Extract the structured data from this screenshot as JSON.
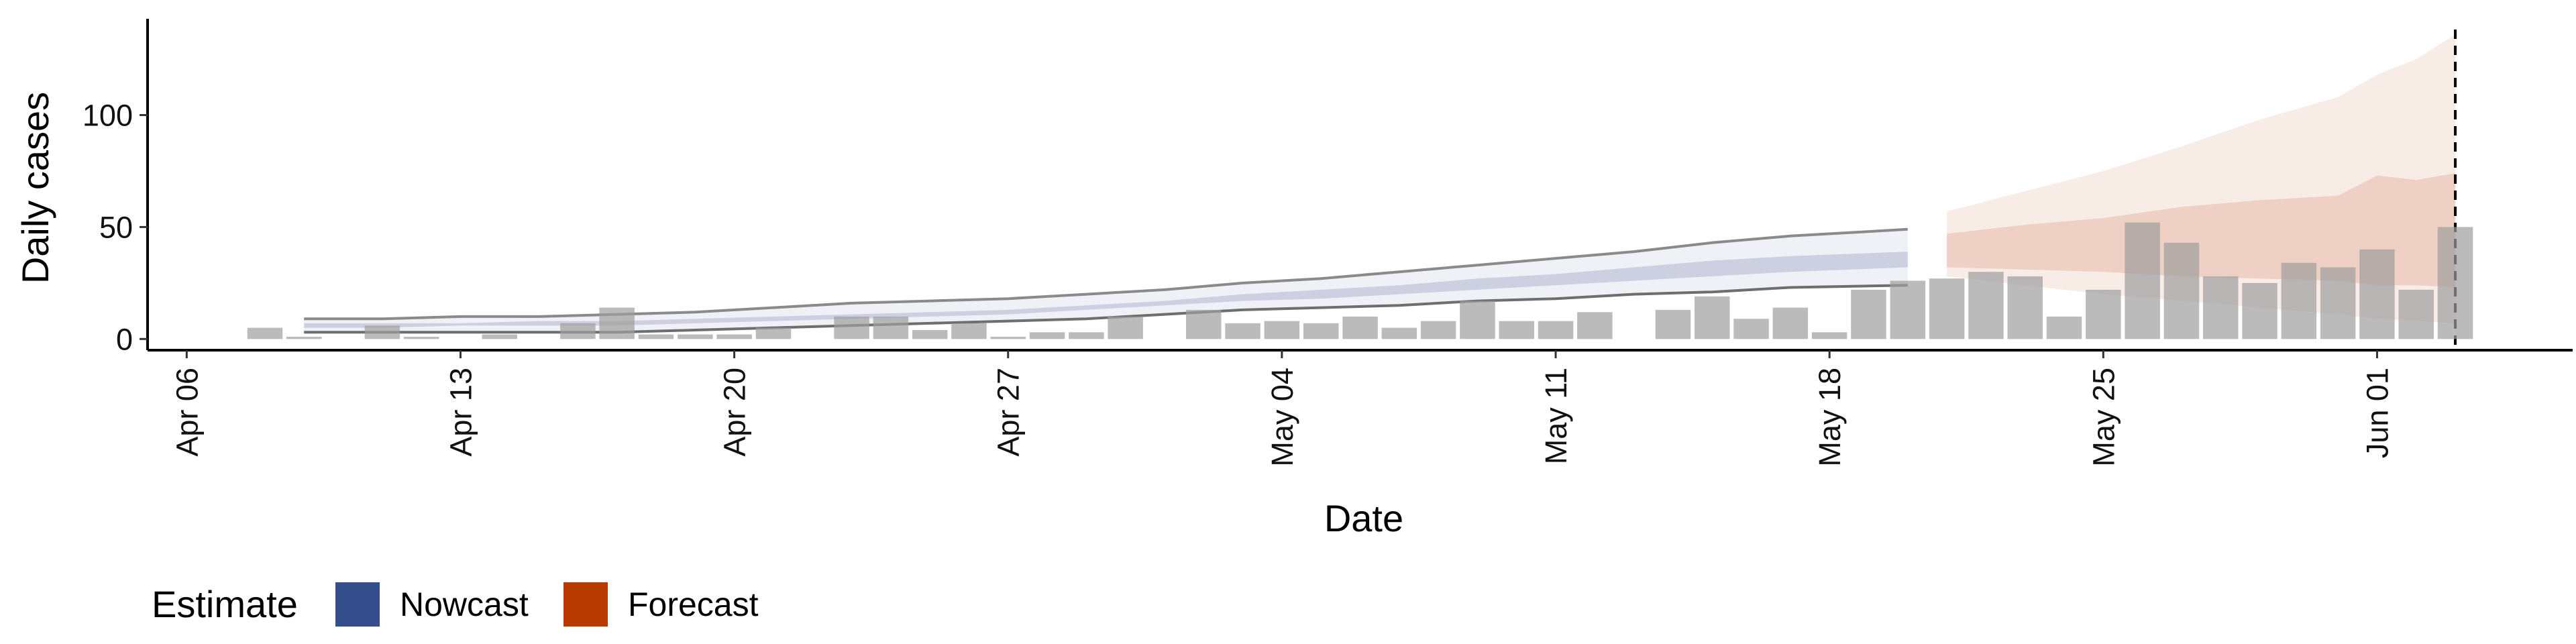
{
  "chart_data": {
    "type": "bar",
    "title": "",
    "xlabel": "Date",
    "ylabel": "Daily cases",
    "x_start": "2020-04-05",
    "x_end": "2020-06-06",
    "ylim": [
      -5,
      143
    ],
    "x_ticks": [
      "Apr 06",
      "Apr 13",
      "Apr 20",
      "Apr 27",
      "May 04",
      "May 11",
      "May 18",
      "May 25",
      "Jun 01"
    ],
    "y_ticks": [
      0,
      50,
      100
    ],
    "grid": false,
    "bar_color": "#9e9e9e",
    "cases": [
      {
        "date": "2020-04-08",
        "value": 5
      },
      {
        "date": "2020-04-09",
        "value": 1
      },
      {
        "date": "2020-04-10",
        "value": 0
      },
      {
        "date": "2020-04-11",
        "value": 6
      },
      {
        "date": "2020-04-12",
        "value": 1
      },
      {
        "date": "2020-04-13",
        "value": 0
      },
      {
        "date": "2020-04-14",
        "value": 2
      },
      {
        "date": "2020-04-15",
        "value": 0
      },
      {
        "date": "2020-04-16",
        "value": 7
      },
      {
        "date": "2020-04-17",
        "value": 14
      },
      {
        "date": "2020-04-18",
        "value": 2
      },
      {
        "date": "2020-04-19",
        "value": 2
      },
      {
        "date": "2020-04-20",
        "value": 2
      },
      {
        "date": "2020-04-21",
        "value": 5
      },
      {
        "date": "2020-04-22",
        "value": 0
      },
      {
        "date": "2020-04-23",
        "value": 10
      },
      {
        "date": "2020-04-24",
        "value": 10
      },
      {
        "date": "2020-04-25",
        "value": 4
      },
      {
        "date": "2020-04-26",
        "value": 7
      },
      {
        "date": "2020-04-27",
        "value": 1
      },
      {
        "date": "2020-04-28",
        "value": 3
      },
      {
        "date": "2020-04-29",
        "value": 3
      },
      {
        "date": "2020-04-30",
        "value": 10
      },
      {
        "date": "2020-05-01",
        "value": 0
      },
      {
        "date": "2020-05-02",
        "value": 13
      },
      {
        "date": "2020-05-03",
        "value": 7
      },
      {
        "date": "2020-05-04",
        "value": 8
      },
      {
        "date": "2020-05-05",
        "value": 7
      },
      {
        "date": "2020-05-06",
        "value": 10
      },
      {
        "date": "2020-05-07",
        "value": 5
      },
      {
        "date": "2020-05-08",
        "value": 8
      },
      {
        "date": "2020-05-09",
        "value": 17
      },
      {
        "date": "2020-05-10",
        "value": 8
      },
      {
        "date": "2020-05-11",
        "value": 8
      },
      {
        "date": "2020-05-12",
        "value": 12
      },
      {
        "date": "2020-05-13",
        "value": 0
      },
      {
        "date": "2020-05-14",
        "value": 13
      },
      {
        "date": "2020-05-15",
        "value": 19
      },
      {
        "date": "2020-05-16",
        "value": 9
      },
      {
        "date": "2020-05-17",
        "value": 14
      },
      {
        "date": "2020-05-18",
        "value": 3
      },
      {
        "date": "2020-05-19",
        "value": 22
      },
      {
        "date": "2020-05-20",
        "value": 26
      },
      {
        "date": "2020-05-21",
        "value": 27
      },
      {
        "date": "2020-05-22",
        "value": 30
      },
      {
        "date": "2020-05-23",
        "value": 28
      },
      {
        "date": "2020-05-24",
        "value": 10
      },
      {
        "date": "2020-05-25",
        "value": 22
      },
      {
        "date": "2020-05-26",
        "value": 52
      },
      {
        "date": "2020-05-27",
        "value": 43
      },
      {
        "date": "2020-05-28",
        "value": 28
      },
      {
        "date": "2020-05-29",
        "value": 25
      },
      {
        "date": "2020-05-30",
        "value": 34
      },
      {
        "date": "2020-05-31",
        "value": 32
      },
      {
        "date": "2020-06-01",
        "value": 40
      },
      {
        "date": "2020-06-02",
        "value": 22
      },
      {
        "date": "2020-06-03",
        "value": 50
      }
    ],
    "nowcast": {
      "color": "#3b4f8a",
      "dates": [
        "2020-04-09",
        "2020-04-11",
        "2020-04-13",
        "2020-04-15",
        "2020-04-17",
        "2020-04-19",
        "2020-04-21",
        "2020-04-23",
        "2020-04-25",
        "2020-04-27",
        "2020-04-29",
        "2020-05-01",
        "2020-05-03",
        "2020-05-05",
        "2020-05-07",
        "2020-05-09",
        "2020-05-11",
        "2020-05-13",
        "2020-05-15",
        "2020-05-17",
        "2020-05-20"
      ],
      "outer_lower": [
        3,
        3,
        3,
        3,
        3,
        4,
        5,
        6,
        7,
        8,
        9,
        11,
        13,
        14,
        15,
        17,
        18,
        20,
        21,
        23,
        24
      ],
      "outer_upper": [
        9,
        9,
        10,
        10,
        11,
        12,
        14,
        16,
        17,
        18,
        20,
        22,
        25,
        27,
        30,
        33,
        36,
        39,
        43,
        46,
        49
      ],
      "inner_lower": [
        5,
        5,
        6,
        6,
        6,
        7,
        8,
        9,
        10,
        11,
        13,
        15,
        17,
        18,
        20,
        22,
        24,
        26,
        28,
        30,
        32
      ],
      "inner_upper": [
        7,
        7,
        7,
        8,
        8,
        9,
        10,
        11,
        12,
        13,
        15,
        17,
        20,
        22,
        24,
        27,
        29,
        32,
        35,
        37,
        39
      ]
    },
    "forecast": {
      "color": "#b8400f",
      "dates": [
        "2020-05-21",
        "2020-05-23",
        "2020-05-25",
        "2020-05-27",
        "2020-05-29",
        "2020-05-31",
        "2020-06-01",
        "2020-06-02",
        "2020-06-03"
      ],
      "outer_lower": [
        28,
        24,
        20,
        17,
        14,
        11,
        9,
        8,
        7
      ],
      "outer_upper": [
        57,
        66,
        75,
        86,
        98,
        108,
        118,
        125,
        136
      ],
      "inner_lower": [
        32,
        31,
        30,
        28,
        27,
        26,
        24,
        24,
        23
      ],
      "inner_upper": [
        47,
        51,
        54,
        59,
        62,
        64,
        73,
        71,
        74
      ]
    },
    "vline_date": "2020-06-03",
    "legend": {
      "title": "Estimate",
      "position": "bottom-left",
      "items": [
        {
          "label": "Nowcast",
          "color": "#354e8c"
        },
        {
          "label": "Forecast",
          "color": "#b83a00"
        }
      ]
    }
  }
}
